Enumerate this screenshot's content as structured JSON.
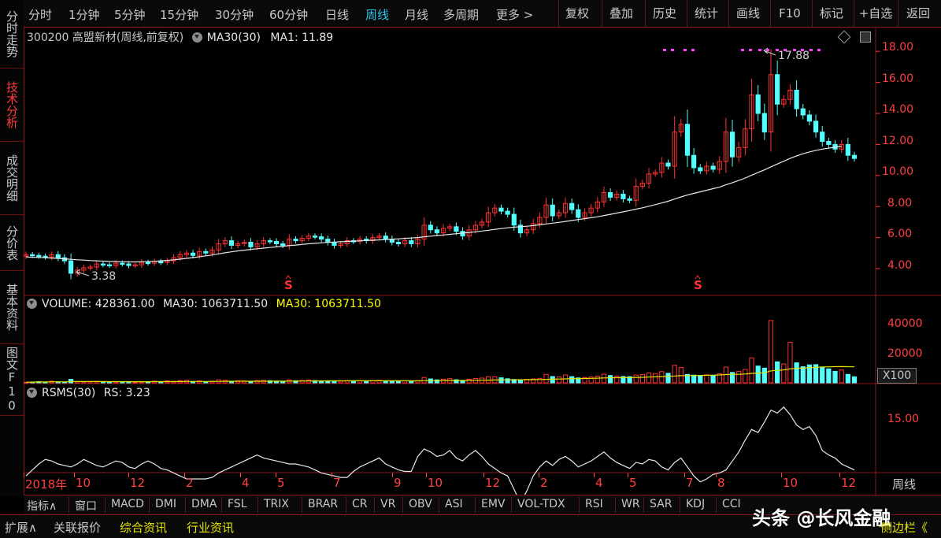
{
  "sidebar": {
    "tabs": [
      "分时走势",
      "技术分析",
      "成交明细",
      "分价表",
      "基本资料",
      "图文F10"
    ]
  },
  "toolbar": {
    "periods": [
      "分时",
      "1分钟",
      "5分钟",
      "15分钟",
      "30分钟",
      "60分钟",
      "日线",
      "周线",
      "月线",
      "多周期",
      "更多 >"
    ],
    "active_period": "周线",
    "right_buttons": [
      "复权",
      "叠加",
      "历史",
      "统计",
      "画线",
      "F10",
      "标记",
      "+自选",
      "返回"
    ]
  },
  "main_panel": {
    "stock_title": "300200 高盟新材(周线,前复权)",
    "ma_label": "MA30(30)",
    "ma_value": "MA1: 11.89",
    "high_marker": "17.88",
    "low_marker": "3.38",
    "s_marker": "S",
    "y_axis": [
      "18.00",
      "16.00",
      "14.00",
      "12.00",
      "10.00",
      "8.00",
      "6.00",
      "4.00"
    ]
  },
  "volume_panel": {
    "label": "VOLUME: 428361.00",
    "ma_label": "MA30: 1063711.50",
    "ma_label_yellow": "MA30: 1063711.50",
    "y_axis": [
      "40000",
      "20000"
    ],
    "unit": "X100"
  },
  "rsms_panel": {
    "label": "RSMS(30)",
    "value": "RS: 3.23",
    "y_axis": [
      "15.00"
    ]
  },
  "x_axis": {
    "labels": [
      "2018年",
      "10",
      "12",
      "2",
      "4",
      "5",
      "7",
      "9",
      "10",
      "12",
      "2",
      "4",
      "5",
      "7",
      "8",
      "10",
      "12"
    ],
    "period_label": "周线"
  },
  "indicator_bar": [
    "指标∧",
    "窗口",
    "MACD",
    "DMI",
    "DMA",
    "FSL",
    "TRIX",
    "BRAR",
    "CR",
    "VR",
    "OBV",
    "ASI",
    "EMV",
    "VOL-TDX",
    "RSI",
    "WR",
    "SAR",
    "KDJ",
    "CCI"
  ],
  "extend_bar": {
    "items": [
      "扩展∧",
      "关联报价",
      "综合资讯",
      "行业资讯"
    ],
    "watermark": "头条 @长风金融",
    "right": "侧边栏《"
  },
  "colors": {
    "up": "#ff3232",
    "down": "#54ffff",
    "ma": "#e8e8e8",
    "vol_ma": "#ffff00",
    "frame": "#8a1a1a"
  },
  "chart_data": {
    "type": "candlestick",
    "ylim": [
      3,
      19
    ],
    "close": [
      4.9,
      4.85,
      4.8,
      4.75,
      4.9,
      4.7,
      4.5,
      3.7,
      3.9,
      4.05,
      4.1,
      4.3,
      4.25,
      4.2,
      4.35,
      4.3,
      4.2,
      4.25,
      4.4,
      4.35,
      4.45,
      4.4,
      4.5,
      4.7,
      4.9,
      5.0,
      4.85,
      5.1,
      5.0,
      5.2,
      5.6,
      5.8,
      5.5,
      5.6,
      5.7,
      5.4,
      5.6,
      5.8,
      5.75,
      5.6,
      5.5,
      5.9,
      5.8,
      5.95,
      6.1,
      6.05,
      5.9,
      5.7,
      5.5,
      5.6,
      5.8,
      5.75,
      5.9,
      5.8,
      6.0,
      6.1,
      5.9,
      5.7,
      5.6,
      5.8,
      5.6,
      5.9,
      6.8,
      6.5,
      6.3,
      6.6,
      6.7,
      6.4,
      6.1,
      6.5,
      6.8,
      7.0,
      7.6,
      7.9,
      7.7,
      7.5,
      6.8,
      6.3,
      6.5,
      6.9,
      7.3,
      8.1,
      7.4,
      7.6,
      8.2,
      7.8,
      7.3,
      7.6,
      7.9,
      8.3,
      8.9,
      8.6,
      8.8,
      8.5,
      8.4,
      9.3,
      9.5,
      10.1,
      10.2,
      10.8,
      10.6,
      12.8,
      13.3,
      11.3,
      10.5,
      10.3,
      10.6,
      10.4,
      10.9,
      12.8,
      11.2,
      11.8,
      13.0,
      15.2,
      14.0,
      12.8,
      16.5,
      14.6,
      14.9,
      15.5,
      14.3,
      13.9,
      13.5,
      12.8,
      12.2,
      12.0,
      11.7,
      12.0,
      11.3,
      11.1
    ],
    "ma30": [
      4.75,
      4.73,
      4.72,
      4.7,
      4.68,
      4.66,
      4.63,
      4.6,
      4.57,
      4.55,
      4.52,
      4.5,
      4.48,
      4.46,
      4.45,
      4.44,
      4.43,
      4.43,
      4.44,
      4.45,
      4.47,
      4.5,
      4.53,
      4.57,
      4.61,
      4.66,
      4.71,
      4.76,
      4.82,
      4.88,
      4.95,
      5.02,
      5.08,
      5.14,
      5.19,
      5.24,
      5.28,
      5.32,
      5.36,
      5.4,
      5.44,
      5.48,
      5.52,
      5.56,
      5.6,
      5.63,
      5.66,
      5.69,
      5.71,
      5.73,
      5.75,
      5.77,
      5.79,
      5.81,
      5.83,
      5.85,
      5.88,
      5.9,
      5.92,
      5.95,
      5.97,
      6.0,
      6.05,
      6.09,
      6.13,
      6.17,
      6.21,
      6.25,
      6.29,
      6.33,
      6.37,
      6.42,
      6.47,
      6.53,
      6.58,
      6.63,
      6.67,
      6.7,
      6.73,
      6.77,
      6.82,
      6.88,
      6.93,
      6.98,
      7.04,
      7.1,
      7.16,
      7.22,
      7.28,
      7.34,
      7.42,
      7.5,
      7.58,
      7.66,
      7.74,
      7.83,
      7.92,
      8.02,
      8.12,
      8.23,
      8.34,
      8.48,
      8.62,
      8.74,
      8.85,
      8.95,
      9.05,
      9.15,
      9.25,
      9.4,
      9.54,
      9.68,
      9.84,
      10.02,
      10.2,
      10.36,
      10.56,
      10.74,
      10.92,
      11.1,
      11.26,
      11.4,
      11.52,
      11.62,
      11.7,
      11.76,
      11.82,
      11.89
    ],
    "volume": [
      400,
      600,
      900,
      500,
      1200,
      700,
      600,
      2500,
      900,
      700,
      800,
      1100,
      600,
      500,
      700,
      600,
      800,
      500,
      900,
      700,
      1200,
      900,
      1400,
      1100,
      1600,
      1800,
      1000,
      1400,
      900,
      1200,
      2200,
      1800,
      1200,
      1500,
      1400,
      1100,
      1600,
      1800,
      1500,
      1200,
      1000,
      2000,
      1500,
      1700,
      2000,
      1600,
      1400,
      1300,
      1000,
      1200,
      1600,
      1300,
      1500,
      1200,
      1600,
      1800,
      1400,
      1100,
      1000,
      1300,
      1000,
      1500,
      3800,
      2800,
      2100,
      2600,
      3000,
      2200,
      1700,
      2600,
      3100,
      3400,
      4400,
      4300,
      3600,
      2900,
      2400,
      2100,
      2500,
      2800,
      3200,
      6000,
      4500,
      4300,
      5600,
      4400,
      3500,
      3800,
      4200,
      4700,
      6200,
      5200,
      4800,
      4500,
      4400,
      5600,
      5900,
      7100,
      6600,
      8000,
      6800,
      12500,
      11000,
      6000,
      5500,
      4800,
      5700,
      5200,
      6500,
      11200,
      7400,
      8100,
      9600,
      17800,
      12000,
      10500,
      44500,
      15000,
      13500,
      29000,
      14300,
      11500,
      12800,
      13000,
      11000,
      10000,
      8200,
      9200,
      6000,
      4300
    ],
    "rsms": [
      11.2,
      11.6,
      12.0,
      12.3,
      12.2,
      12.0,
      11.9,
      11.8,
      12.0,
      12.3,
      12.1,
      11.9,
      11.8,
      12.0,
      12.2,
      12.1,
      11.8,
      11.7,
      12.0,
      12.2,
      12.0,
      11.7,
      11.6,
      11.4,
      11.2,
      11.0,
      11.0,
      11.0,
      11.0,
      11.1,
      11.4,
      11.6,
      11.8,
      12.0,
      12.2,
      12.4,
      12.6,
      12.4,
      12.3,
      12.2,
      12.1,
      12.0,
      12.0,
      11.9,
      11.8,
      11.6,
      11.4,
      11.3,
      11.2,
      11.1,
      11.1,
      11.5,
      11.8,
      12.0,
      12.2,
      12.4,
      12.0,
      11.8,
      11.6,
      11.5,
      11.5,
      12.5,
      13.0,
      12.8,
      12.5,
      12.6,
      12.9,
      12.4,
      12.2,
      12.6,
      12.9,
      12.5,
      12.0,
      11.7,
      11.4,
      11.2,
      10.3,
      9.4,
      10.2,
      11.2,
      11.8,
      12.2,
      11.9,
      12.3,
      12.5,
      12.2,
      11.8,
      12.0,
      12.2,
      12.5,
      12.8,
      12.4,
      12.1,
      11.9,
      11.7,
      12.1,
      12.0,
      12.3,
      12.2,
      11.8,
      11.6,
      12.1,
      12.4,
      11.8,
      11.2,
      10.8,
      11.0,
      11.3,
      11.4,
      11.6,
      12.2,
      12.8,
      13.6,
      14.3,
      14.1,
      14.8,
      15.6,
      15.4,
      15.8,
      15.3,
      14.6,
      14.3,
      14.5,
      13.9,
      12.9,
      12.6,
      12.4,
      12.0,
      11.8,
      11.6
    ]
  }
}
